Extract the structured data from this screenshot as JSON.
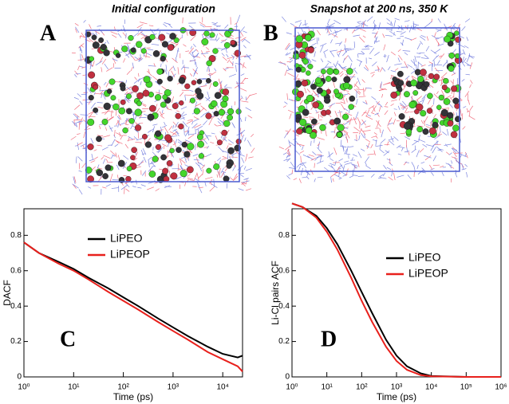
{
  "panels": [
    {
      "letter": "A",
      "title": "Initial configuration"
    },
    {
      "letter": "B",
      "title": "Snapshot at 200 ns, 350 K"
    }
  ],
  "chart_data": [
    {
      "type": "line",
      "label": "C",
      "xlabel": "Time (ps)",
      "ylabel": "DACF",
      "xscale": "log",
      "x": [
        1,
        2,
        5,
        10,
        20,
        50,
        100,
        200,
        500,
        1000,
        2000,
        5000,
        10000,
        20000,
        25000
      ],
      "series": [
        {
          "name": "LiPEO",
          "color": "#000000",
          "values": [
            0.76,
            0.7,
            0.65,
            0.61,
            0.56,
            0.5,
            0.45,
            0.4,
            0.33,
            0.28,
            0.23,
            0.17,
            0.13,
            0.11,
            0.12
          ]
        },
        {
          "name": "LiPEOP",
          "color": "#e8201c",
          "values": [
            0.76,
            0.7,
            0.64,
            0.6,
            0.55,
            0.48,
            0.43,
            0.38,
            0.31,
            0.26,
            0.21,
            0.14,
            0.1,
            0.06,
            0.03
          ]
        }
      ],
      "xlim": [
        1,
        25000
      ],
      "xticks": [
        {
          "value": 1,
          "label": "10⁰"
        },
        {
          "value": 10,
          "label": "10¹"
        },
        {
          "value": 100,
          "label": "10²"
        },
        {
          "value": 1000,
          "label": "10³"
        },
        {
          "value": 10000,
          "label": "10⁴"
        }
      ],
      "ylim": [
        0,
        0.95
      ],
      "yticks": [
        0,
        0.2,
        0.4,
        0.6,
        0.8
      ]
    },
    {
      "type": "line",
      "label": "D",
      "xlabel": "Time (ps)",
      "ylabel": "Li-Cl pairs ACF",
      "xscale": "log",
      "x": [
        1,
        2,
        5,
        10,
        20,
        50,
        100,
        200,
        500,
        1000,
        2000,
        5000,
        10000,
        100000,
        1000000
      ],
      "series": [
        {
          "name": "LiPEO",
          "color": "#000000",
          "values": [
            0.98,
            0.96,
            0.91,
            0.84,
            0.75,
            0.6,
            0.48,
            0.36,
            0.21,
            0.12,
            0.06,
            0.02,
            0.005,
            0,
            0
          ]
        },
        {
          "name": "LiPEOP",
          "color": "#e8201c",
          "values": [
            0.98,
            0.96,
            0.9,
            0.82,
            0.72,
            0.56,
            0.43,
            0.31,
            0.17,
            0.09,
            0.04,
            0.01,
            0.003,
            0,
            0
          ]
        }
      ],
      "xlim": [
        1,
        1000000
      ],
      "xticks": [
        {
          "value": 1,
          "label": "10⁰"
        },
        {
          "value": 10,
          "label": "10¹"
        },
        {
          "value": 100,
          "label": "10²"
        },
        {
          "value": 1000,
          "label": "10³"
        },
        {
          "value": 10000,
          "label": "10⁴"
        },
        {
          "value": 100000,
          "label": "10⁵"
        },
        {
          "value": 1000000,
          "label": "10⁶"
        }
      ],
      "ylim": [
        0,
        0.95
      ],
      "yticks": [
        0,
        0.2,
        0.4,
        0.6,
        0.8
      ]
    }
  ]
}
